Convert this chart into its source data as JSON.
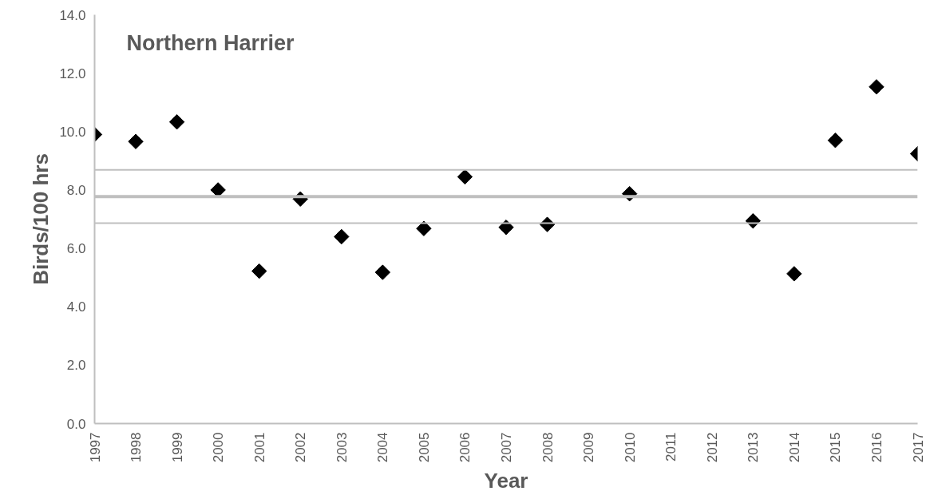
{
  "chart_data": {
    "type": "scatter",
    "title": "Northern Harrier",
    "xlabel": "Year",
    "ylabel": "Birds/100 hrs",
    "categories": [
      "1997",
      "1998",
      "1999",
      "2000",
      "2001",
      "2002",
      "2003",
      "2004",
      "2005",
      "2006",
      "2007",
      "2008",
      "2009",
      "2010",
      "2011",
      "2012",
      "2013",
      "2014",
      "2015",
      "2016",
      "2017"
    ],
    "series": [
      {
        "color": "#000000",
        "values": [
          9.9,
          9.66,
          10.33,
          8.0,
          5.22,
          7.69,
          6.4,
          5.18,
          6.68,
          8.45,
          6.72,
          6.82,
          null,
          7.87,
          null,
          null,
          6.94,
          5.13,
          9.7,
          11.53,
          9.24
        ]
      }
    ],
    "marker": "diamond",
    "ylim": [
      0,
      14
    ],
    "yticks": [
      {
        "value": 0,
        "label": "0.0"
      },
      {
        "value": 2,
        "label": "2.0"
      },
      {
        "value": 4,
        "label": "4.0"
      },
      {
        "value": 6,
        "label": "6.0"
      },
      {
        "value": 8,
        "label": "8.0"
      },
      {
        "value": 10,
        "label": "10.0"
      },
      {
        "value": 12,
        "label": "12.0"
      },
      {
        "value": 14,
        "label": "14.0"
      }
    ],
    "ref_lines": [
      {
        "axis": "y",
        "value": 8.69,
        "color": "#bfbfbf"
      },
      {
        "axis": "y",
        "value": 7.77,
        "color": "#bfbfbf"
      },
      {
        "axis": "y",
        "value": 6.86,
        "color": "#bfbfbf"
      }
    ],
    "grid": false
  }
}
